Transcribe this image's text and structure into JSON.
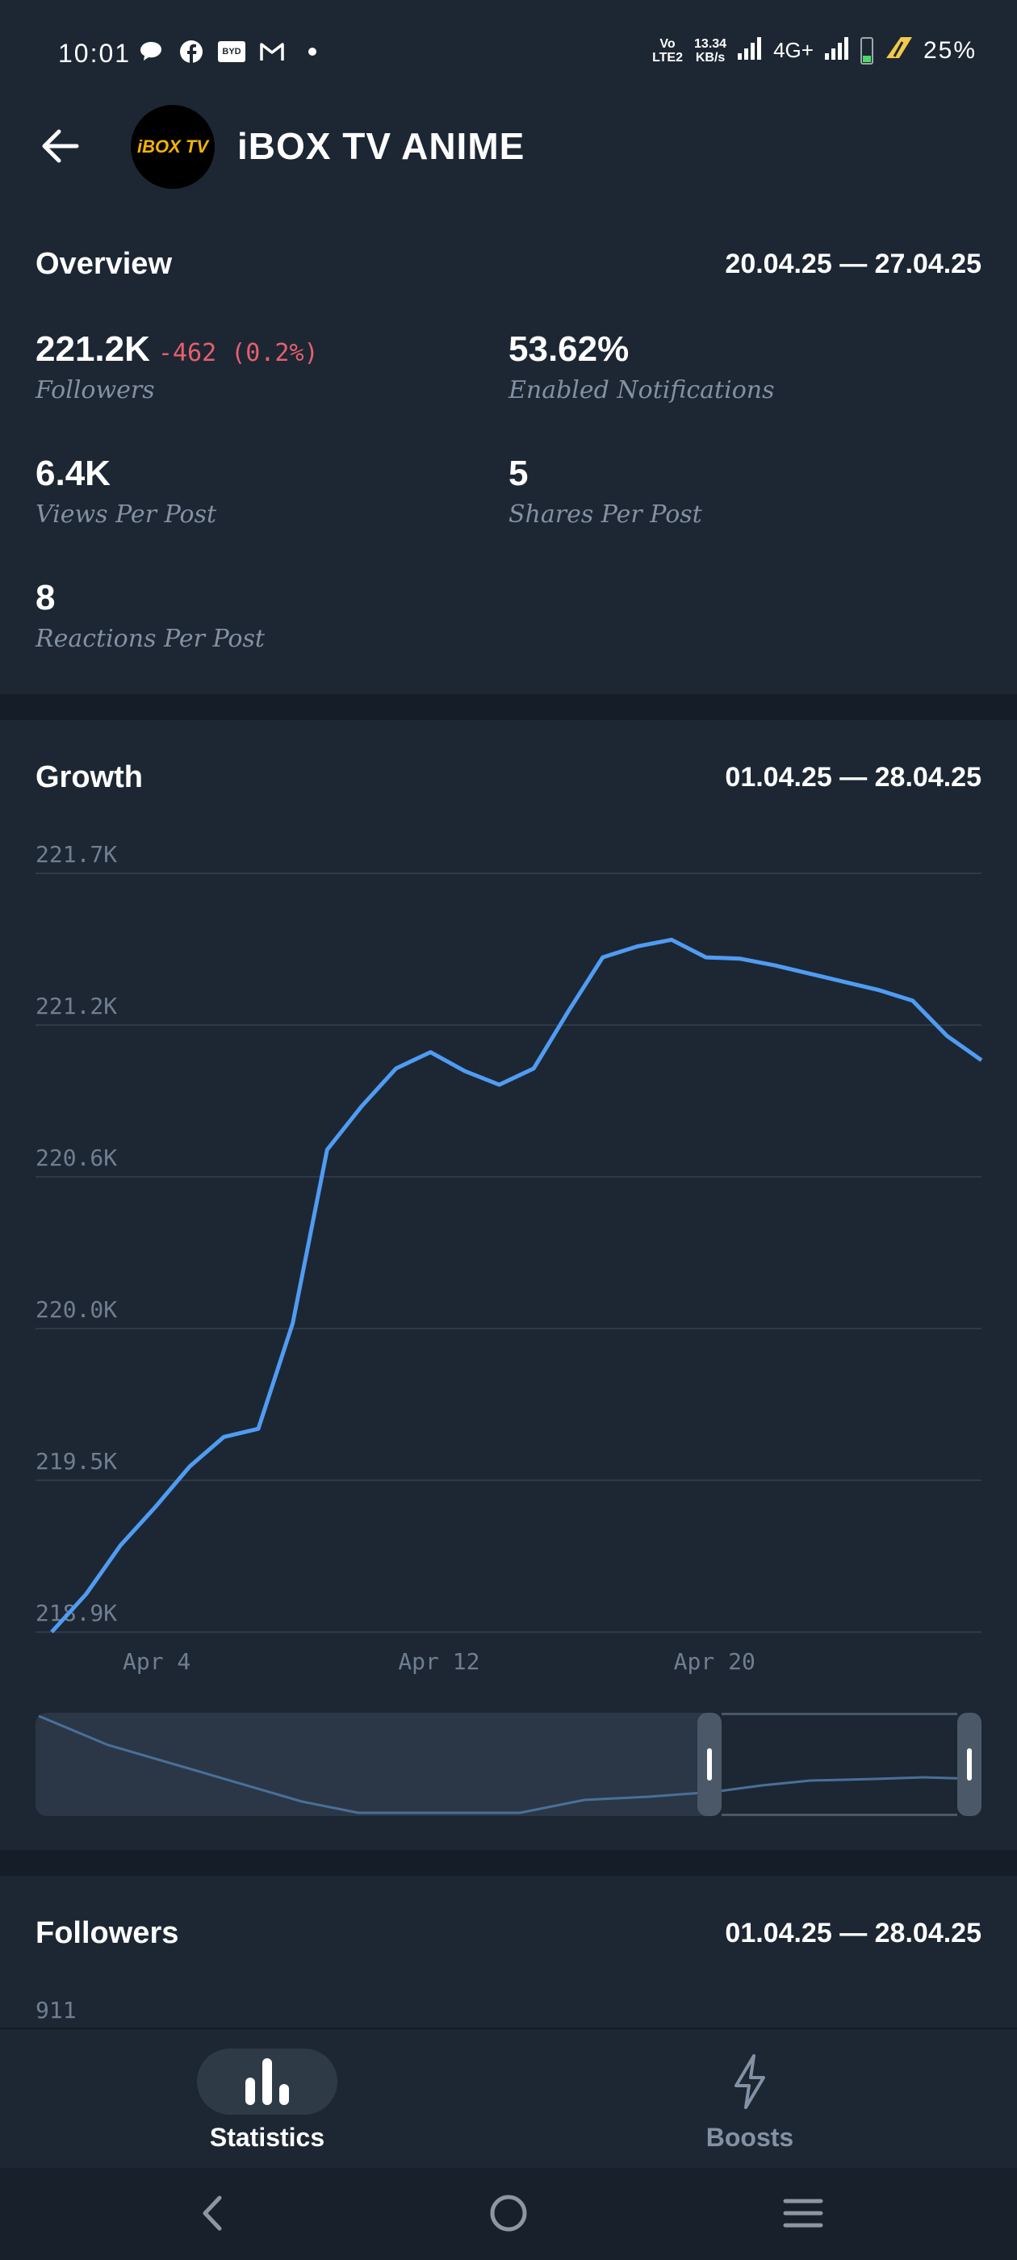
{
  "status_bar": {
    "time": "10:01",
    "left_icons": [
      "chat-bubble-icon",
      "facebook-icon",
      "brand-badge-icon",
      "gmail-icon",
      "dot-icon"
    ],
    "badge_text": "BYD",
    "volte": "Vo LTE2",
    "speed_value": "13.34",
    "speed_unit": "KB/s",
    "network": "4G+",
    "battery_percent": "25%",
    "battery_level": 0.25
  },
  "header": {
    "channel_name": "iBOX TV ANIME",
    "avatar_text": "iBOX TV"
  },
  "overview": {
    "title": "Overview",
    "range": "20.04.25 — 27.04.25",
    "stats": [
      {
        "value": "221.2K",
        "delta": "-462 (0.2%)",
        "label": "Followers"
      },
      {
        "value": "53.62%",
        "label": "Enabled Notifications"
      },
      {
        "value": "6.4K",
        "label": "Views Per Post"
      },
      {
        "value": "5",
        "label": "Shares Per Post"
      },
      {
        "value": "8",
        "label": "Reactions Per Post"
      }
    ]
  },
  "growth": {
    "title": "Growth",
    "range": "01.04.25 — 28.04.25"
  },
  "chart_data": {
    "type": "line",
    "y_ticks": [
      "221.7K",
      "221.2K",
      "220.6K",
      "220.0K",
      "219.5K",
      "218.9K"
    ],
    "x_ticks": [
      "Apr 4",
      "Apr 12",
      "Apr 20"
    ],
    "ylim": [
      218900,
      221700
    ],
    "grid": true,
    "series": [
      {
        "color": "#4f9cf3",
        "x": [
          1,
          2,
          3,
          4,
          5,
          6,
          7,
          8,
          9,
          10,
          11,
          12,
          13,
          14,
          15,
          16,
          17,
          18,
          19,
          20,
          21,
          22,
          23,
          24,
          25,
          26,
          27,
          28
        ],
        "values": [
          218900,
          219040,
          219220,
          219360,
          219510,
          219620,
          219650,
          220040,
          220680,
          220840,
          220980,
          221040,
          220970,
          220920,
          220980,
          221190,
          221390,
          221430,
          221455,
          221390,
          221385,
          221360,
          221330,
          221300,
          221270,
          221230,
          221100,
          221010
        ]
      }
    ]
  },
  "followers": {
    "title": "Followers",
    "range": "01.04.25 — 28.04.25",
    "y_first_tick": "911"
  },
  "tabs": [
    {
      "label": "Statistics",
      "icon": "bar-chart-icon",
      "active": true
    },
    {
      "label": "Boosts",
      "icon": "lightning-icon",
      "active": false
    }
  ],
  "colors": {
    "background": "#1d2733",
    "accent_line": "#4f9cf3",
    "negative": "#e5606e",
    "muted_text": "#8291a3"
  }
}
